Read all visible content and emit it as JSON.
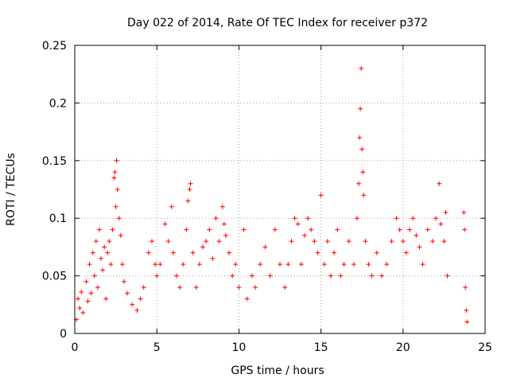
{
  "chart_data": {
    "type": "scatter",
    "title": "Day 022 of 2014, Rate Of TEC Index for receiver p372",
    "xlabel": "GPS time / hours",
    "ylabel": "ROTI / TECUs",
    "xlim": [
      0,
      25
    ],
    "ylim": [
      0,
      0.25
    ],
    "xticks": [
      0,
      5,
      10,
      15,
      20,
      25
    ],
    "xtick_labels": [
      "0",
      "5",
      "10",
      "15",
      "20",
      "25"
    ],
    "yticks": [
      0,
      0.05,
      0.1,
      0.15,
      0.2,
      0.25
    ],
    "ytick_labels": [
      "0",
      "0.05",
      "0.1",
      "0.15",
      "0.2",
      "0.25"
    ],
    "grid": true,
    "marker": "+",
    "color": "#ff0000",
    "series": [
      {
        "points": [
          [
            0.1,
            0.012
          ],
          [
            0.2,
            0.03
          ],
          [
            0.3,
            0.022
          ],
          [
            0.4,
            0.036
          ],
          [
            0.5,
            0.018
          ],
          [
            0.7,
            0.045
          ],
          [
            0.8,
            0.028
          ],
          [
            0.9,
            0.06
          ],
          [
            1.0,
            0.035
          ],
          [
            1.1,
            0.07
          ],
          [
            1.2,
            0.05
          ],
          [
            1.3,
            0.08
          ],
          [
            1.4,
            0.04
          ],
          [
            1.5,
            0.09
          ],
          [
            1.6,
            0.065
          ],
          [
            1.7,
            0.055
          ],
          [
            1.8,
            0.075
          ],
          [
            1.9,
            0.03
          ],
          [
            2.0,
            0.07
          ],
          [
            2.1,
            0.08
          ],
          [
            2.2,
            0.06
          ],
          [
            2.3,
            0.09
          ],
          [
            2.4,
            0.135
          ],
          [
            2.45,
            0.14
          ],
          [
            2.5,
            0.11
          ],
          [
            2.55,
            0.15
          ],
          [
            2.6,
            0.125
          ],
          [
            2.7,
            0.1
          ],
          [
            2.8,
            0.085
          ],
          [
            2.9,
            0.06
          ],
          [
            3.0,
            0.045
          ],
          [
            3.2,
            0.035
          ],
          [
            3.5,
            0.025
          ],
          [
            3.8,
            0.02
          ],
          [
            4.0,
            0.03
          ],
          [
            4.2,
            0.04
          ],
          [
            4.5,
            0.07
          ],
          [
            4.7,
            0.08
          ],
          [
            4.9,
            0.06
          ],
          [
            5.0,
            0.05
          ],
          [
            5.2,
            0.06
          ],
          [
            5.5,
            0.095
          ],
          [
            5.7,
            0.08
          ],
          [
            5.9,
            0.11
          ],
          [
            6.0,
            0.07
          ],
          [
            6.2,
            0.05
          ],
          [
            6.4,
            0.04
          ],
          [
            6.6,
            0.06
          ],
          [
            6.8,
            0.09
          ],
          [
            6.9,
            0.115
          ],
          [
            7.0,
            0.125
          ],
          [
            7.05,
            0.13
          ],
          [
            7.2,
            0.07
          ],
          [
            7.4,
            0.04
          ],
          [
            7.6,
            0.06
          ],
          [
            7.8,
            0.075
          ],
          [
            8.0,
            0.08
          ],
          [
            8.2,
            0.09
          ],
          [
            8.4,
            0.065
          ],
          [
            8.6,
            0.1
          ],
          [
            8.8,
            0.08
          ],
          [
            9.0,
            0.11
          ],
          [
            9.1,
            0.095
          ],
          [
            9.2,
            0.085
          ],
          [
            9.4,
            0.07
          ],
          [
            9.6,
            0.05
          ],
          [
            9.8,
            0.06
          ],
          [
            10.0,
            0.04
          ],
          [
            10.3,
            0.09
          ],
          [
            10.5,
            0.03
          ],
          [
            10.8,
            0.05
          ],
          [
            11.0,
            0.04
          ],
          [
            11.3,
            0.06
          ],
          [
            11.6,
            0.075
          ],
          [
            11.9,
            0.05
          ],
          [
            12.2,
            0.09
          ],
          [
            12.5,
            0.06
          ],
          [
            12.8,
            0.04
          ],
          [
            13.0,
            0.06
          ],
          [
            13.2,
            0.08
          ],
          [
            13.4,
            0.1
          ],
          [
            13.6,
            0.095
          ],
          [
            13.8,
            0.06
          ],
          [
            14.0,
            0.085
          ],
          [
            14.2,
            0.1
          ],
          [
            14.4,
            0.09
          ],
          [
            14.6,
            0.08
          ],
          [
            14.8,
            0.07
          ],
          [
            15.0,
            0.12
          ],
          [
            15.2,
            0.06
          ],
          [
            15.4,
            0.08
          ],
          [
            15.6,
            0.05
          ],
          [
            15.8,
            0.07
          ],
          [
            16.0,
            0.09
          ],
          [
            16.2,
            0.05
          ],
          [
            16.4,
            0.06
          ],
          [
            16.7,
            0.08
          ],
          [
            17.0,
            0.06
          ],
          [
            17.2,
            0.1
          ],
          [
            17.3,
            0.13
          ],
          [
            17.35,
            0.17
          ],
          [
            17.4,
            0.195
          ],
          [
            17.45,
            0.23
          ],
          [
            17.5,
            0.16
          ],
          [
            17.55,
            0.14
          ],
          [
            17.6,
            0.12
          ],
          [
            17.7,
            0.08
          ],
          [
            17.9,
            0.06
          ],
          [
            18.1,
            0.05
          ],
          [
            18.4,
            0.07
          ],
          [
            18.7,
            0.05
          ],
          [
            19.0,
            0.06
          ],
          [
            19.3,
            0.08
          ],
          [
            19.6,
            0.1
          ],
          [
            19.8,
            0.09
          ],
          [
            20.0,
            0.08
          ],
          [
            20.2,
            0.07
          ],
          [
            20.4,
            0.09
          ],
          [
            20.6,
            0.1
          ],
          [
            20.8,
            0.085
          ],
          [
            21.0,
            0.075
          ],
          [
            21.2,
            0.06
          ],
          [
            21.5,
            0.09
          ],
          [
            21.8,
            0.08
          ],
          [
            22.0,
            0.1
          ],
          [
            22.2,
            0.13
          ],
          [
            22.3,
            0.095
          ],
          [
            22.5,
            0.08
          ],
          [
            22.6,
            0.105
          ],
          [
            22.7,
            0.05
          ],
          [
            23.7,
            0.105
          ],
          [
            23.75,
            0.09
          ],
          [
            23.8,
            0.04
          ],
          [
            23.85,
            0.02
          ],
          [
            23.9,
            0.01
          ]
        ]
      }
    ]
  }
}
